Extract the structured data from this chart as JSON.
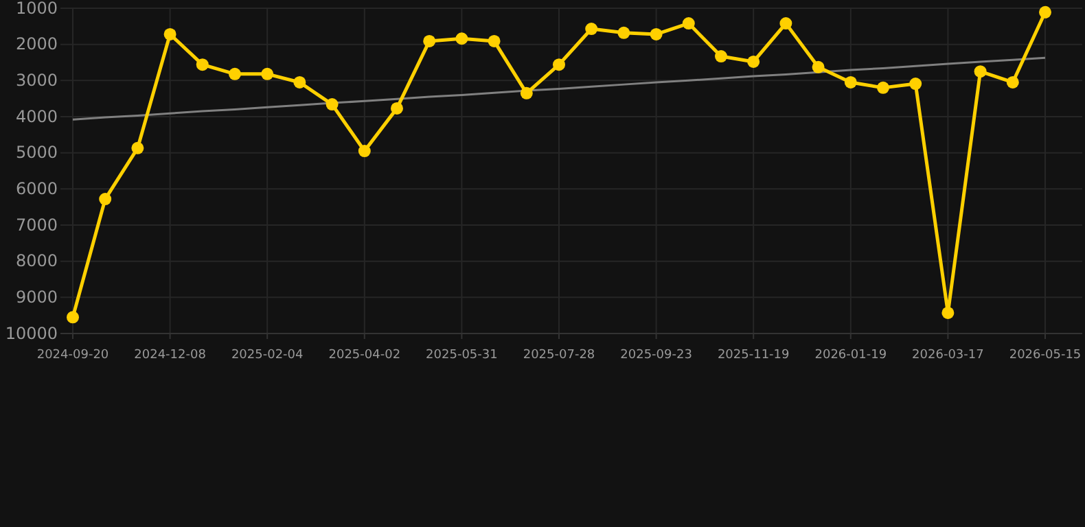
{
  "chart_data": {
    "type": "line",
    "categories": [
      "2024-09-20",
      null,
      null,
      "2024-12-08",
      null,
      null,
      "2025-02-04",
      null,
      null,
      "2025-04-02",
      null,
      null,
      "2025-05-31",
      null,
      null,
      "2025-07-28",
      null,
      null,
      "2025-09-23",
      null,
      null,
      "2025-11-19",
      null,
      null,
      "2026-01-19",
      null,
      null,
      "2026-03-17",
      null,
      null,
      "2026-05-15"
    ],
    "ylim": [
      10000,
      1000
    ],
    "yticks": [
      1000,
      2000,
      3000,
      4000,
      5000,
      6000,
      7000,
      8000,
      9000,
      10000
    ],
    "grid": true,
    "marker": "circle",
    "line_style": "solid",
    "series": [
      {
        "color": "#ffd000",
        "values": [
          9550,
          6280,
          4870,
          1720,
          2560,
          2820,
          2820,
          3050,
          3660,
          4950,
          3770,
          1910,
          1840,
          1910,
          3350,
          2560,
          1570,
          1680,
          1720,
          1420,
          2330,
          2480,
          1420,
          2630,
          3050,
          3200,
          3090,
          9430,
          2750,
          3050,
          1110
        ]
      },
      {
        "type": "line",
        "color": "#808080",
        "values": [
          4080,
          4020,
          3970,
          3910,
          3850,
          3800,
          3740,
          3680,
          3620,
          3570,
          3510,
          3450,
          3400,
          3340,
          3280,
          3230,
          3170,
          3110,
          3050,
          3000,
          2940,
          2880,
          2830,
          2770,
          2710,
          2660,
          2600,
          2540,
          2480,
          2430,
          2370
        ],
        "marker": "none"
      }
    ]
  }
}
